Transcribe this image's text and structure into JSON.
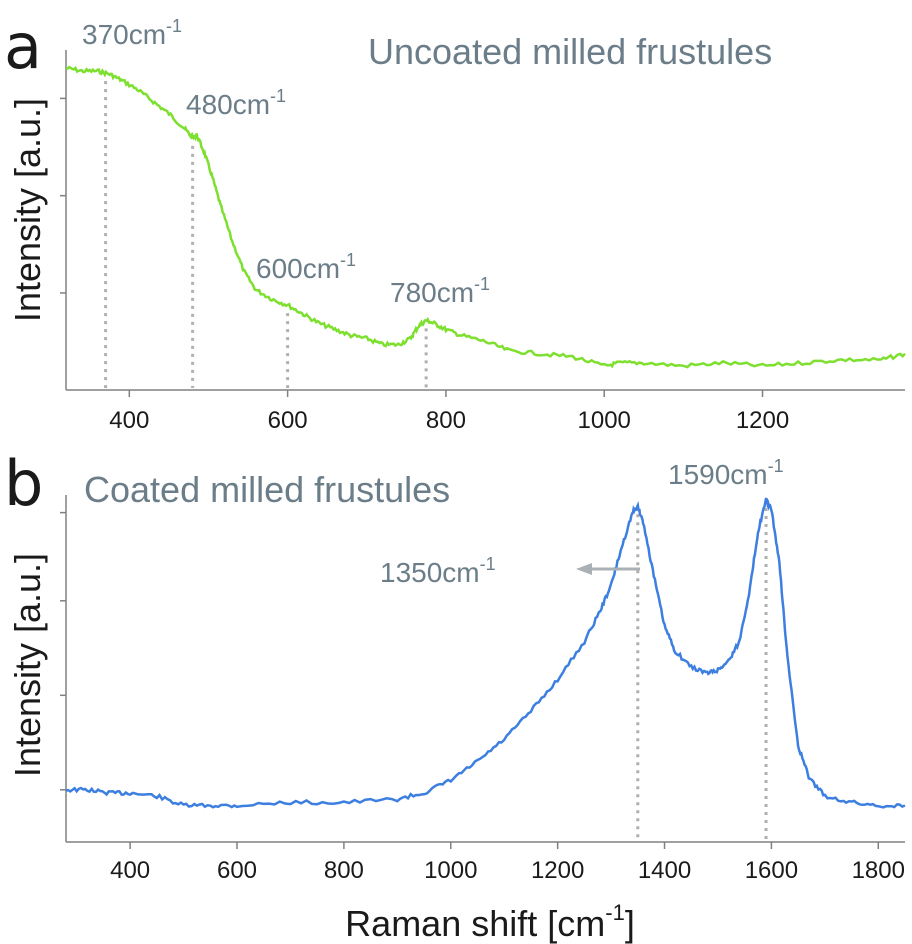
{
  "chart_data": [
    {
      "type": "line",
      "panel_letter": "a",
      "title": "Uncoated milled frustules",
      "xlabel": "",
      "ylabel": "Intensity [a.u.]",
      "xlim": [
        320,
        1380
      ],
      "ylim": [
        0,
        1
      ],
      "xticks": [
        400,
        600,
        800,
        1000,
        1200
      ],
      "y_ticks_unlabeled": [
        0.26,
        0.58,
        0.9
      ],
      "color": "#7ddf2e",
      "grid": false,
      "series": [
        {
          "x": [
            320,
            340,
            360,
            375,
            390,
            410,
            430,
            450,
            470,
            480,
            485,
            495,
            505,
            515,
            530,
            545,
            560,
            580,
            600,
            620,
            640,
            660,
            680,
            700,
            720,
            740,
            755,
            765,
            775,
            785,
            800,
            820,
            850,
            880,
            920,
            960,
            1000,
            1020,
            1050,
            1100,
            1150,
            1200,
            1250,
            1300,
            1350,
            1380
          ],
          "y": [
            1.0,
            0.99,
            0.99,
            0.98,
            0.96,
            0.93,
            0.89,
            0.85,
            0.8,
            0.77,
            0.78,
            0.72,
            0.64,
            0.55,
            0.43,
            0.33,
            0.27,
            0.24,
            0.22,
            0.19,
            0.16,
            0.14,
            0.12,
            0.11,
            0.09,
            0.09,
            0.11,
            0.15,
            0.17,
            0.16,
            0.14,
            0.12,
            0.1,
            0.07,
            0.06,
            0.05,
            0.02,
            0.03,
            0.03,
            0.02,
            0.03,
            0.02,
            0.03,
            0.04,
            0.04,
            0.06
          ]
        }
      ],
      "annotations": [
        {
          "text": "370cm",
          "sup": "-1",
          "x": 370
        },
        {
          "text": "480cm",
          "sup": "-1",
          "x": 480
        },
        {
          "text": "600cm",
          "sup": "-1",
          "x": 600
        },
        {
          "text": "780cm",
          "sup": "-1",
          "x": 775
        }
      ]
    },
    {
      "type": "line",
      "panel_letter": "b",
      "title": "Coated milled frustules",
      "xlabel": "Raman shift [cm",
      "xlabel_sup": "-1",
      "xlabel_end": "]",
      "ylabel": "Intensity [a.u.]",
      "xlim": [
        280,
        1850
      ],
      "ylim": [
        0,
        1
      ],
      "xticks": [
        400,
        600,
        800,
        1000,
        1200,
        1400,
        1600,
        1800
      ],
      "y_ticks_unlabeled": [
        0.08,
        0.38,
        0.68,
        0.96
      ],
      "color": "#3d7fe0",
      "grid": false,
      "series": [
        {
          "x": [
            280,
            320,
            360,
            400,
            450,
            500,
            550,
            600,
            700,
            800,
            900,
            950,
            1000,
            1050,
            1100,
            1150,
            1200,
            1250,
            1280,
            1300,
            1320,
            1340,
            1350,
            1360,
            1380,
            1400,
            1420,
            1450,
            1480,
            1500,
            1520,
            1540,
            1560,
            1575,
            1590,
            1600,
            1615,
            1630,
            1650,
            1670,
            1700,
            1750,
            1800,
            1850
          ],
          "y": [
            0.08,
            0.08,
            0.07,
            0.07,
            0.06,
            0.03,
            0.03,
            0.03,
            0.04,
            0.04,
            0.05,
            0.07,
            0.11,
            0.17,
            0.24,
            0.33,
            0.43,
            0.55,
            0.65,
            0.73,
            0.85,
            0.96,
            0.98,
            0.93,
            0.76,
            0.6,
            0.52,
            0.47,
            0.45,
            0.46,
            0.49,
            0.55,
            0.72,
            0.9,
            1.0,
            0.97,
            0.8,
            0.5,
            0.22,
            0.12,
            0.06,
            0.04,
            0.03,
            0.03
          ]
        }
      ],
      "annotations": [
        {
          "text": "1350cm",
          "sup": "-1",
          "x": 1350,
          "arrow": true
        },
        {
          "text": "1590cm",
          "sup": "-1",
          "x": 1590
        }
      ]
    }
  ]
}
